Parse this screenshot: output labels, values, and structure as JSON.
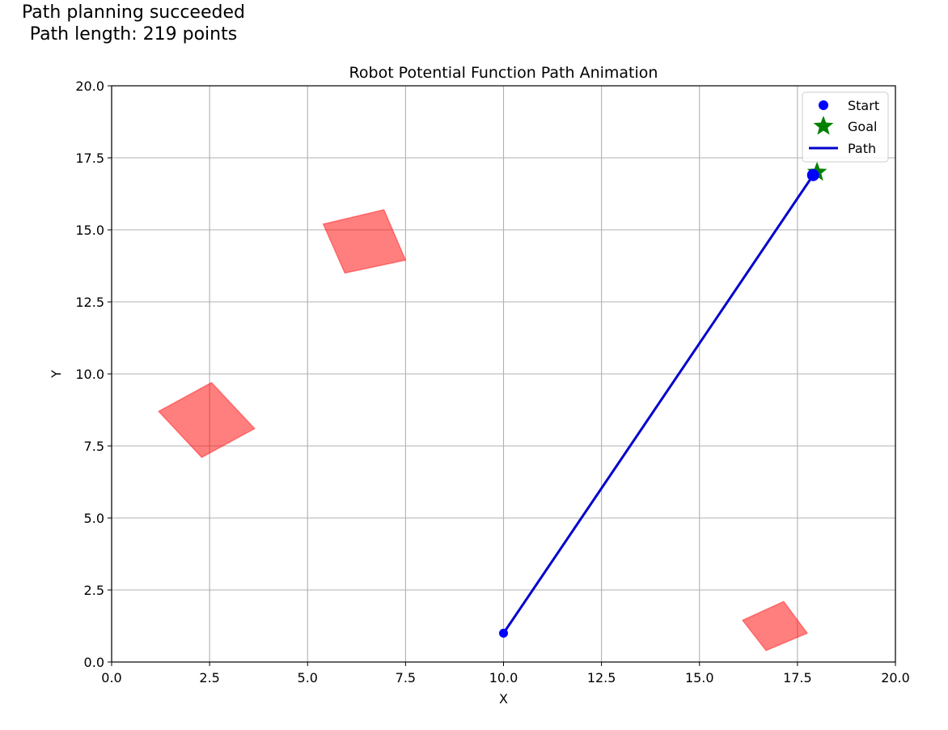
{
  "header": {
    "line1": "Path planning succeeded",
    "line2": "Path length: 219 points"
  },
  "chart_data": {
    "type": "line",
    "title": "Robot Potential Function Path Animation",
    "xlabel": "X",
    "ylabel": "Y",
    "xlim": [
      0,
      20
    ],
    "ylim": [
      0,
      20
    ],
    "xticks": [
      0,
      2.5,
      5,
      7.5,
      10,
      12.5,
      15,
      17.5,
      20
    ],
    "yticks": [
      0,
      2.5,
      5,
      7.5,
      10,
      12.5,
      15,
      17.5,
      20
    ],
    "xtick_labels": [
      "0.0",
      "2.5",
      "5.0",
      "7.5",
      "10.0",
      "12.5",
      "15.0",
      "17.5",
      "20.0"
    ],
    "ytick_labels": [
      "0.0",
      "2.5",
      "5.0",
      "7.5",
      "10.0",
      "12.5",
      "15.0",
      "17.5",
      "20.0"
    ],
    "grid": true,
    "legend_position": "upper-right",
    "series": [
      {
        "name": "Start",
        "kind": "marker",
        "marker": "circle",
        "color": "#0000ff",
        "points": [
          [
            10.0,
            1.0
          ]
        ]
      },
      {
        "name": "Goal",
        "kind": "marker",
        "marker": "star",
        "color": "#008000",
        "points": [
          [
            18.0,
            17.0
          ]
        ]
      },
      {
        "name": "Path",
        "kind": "line",
        "color": "#0000cc",
        "points": [
          [
            10.0,
            1.0
          ],
          [
            17.9,
            16.9
          ]
        ]
      }
    ],
    "current_position": {
      "color": "#0000ff",
      "point": [
        17.9,
        16.9
      ]
    },
    "obstacles": {
      "color": "#ff0000",
      "opacity": 0.5,
      "polygons": [
        [
          [
            1.2,
            8.7
          ],
          [
            2.55,
            9.7
          ],
          [
            3.65,
            8.1
          ],
          [
            2.3,
            7.1
          ]
        ],
        [
          [
            5.4,
            15.2
          ],
          [
            6.95,
            15.7
          ],
          [
            7.5,
            13.95
          ],
          [
            5.95,
            13.5
          ]
        ],
        [
          [
            16.1,
            1.45
          ],
          [
            17.15,
            2.1
          ],
          [
            17.75,
            1.0
          ],
          [
            16.7,
            0.4
          ]
        ]
      ]
    }
  }
}
